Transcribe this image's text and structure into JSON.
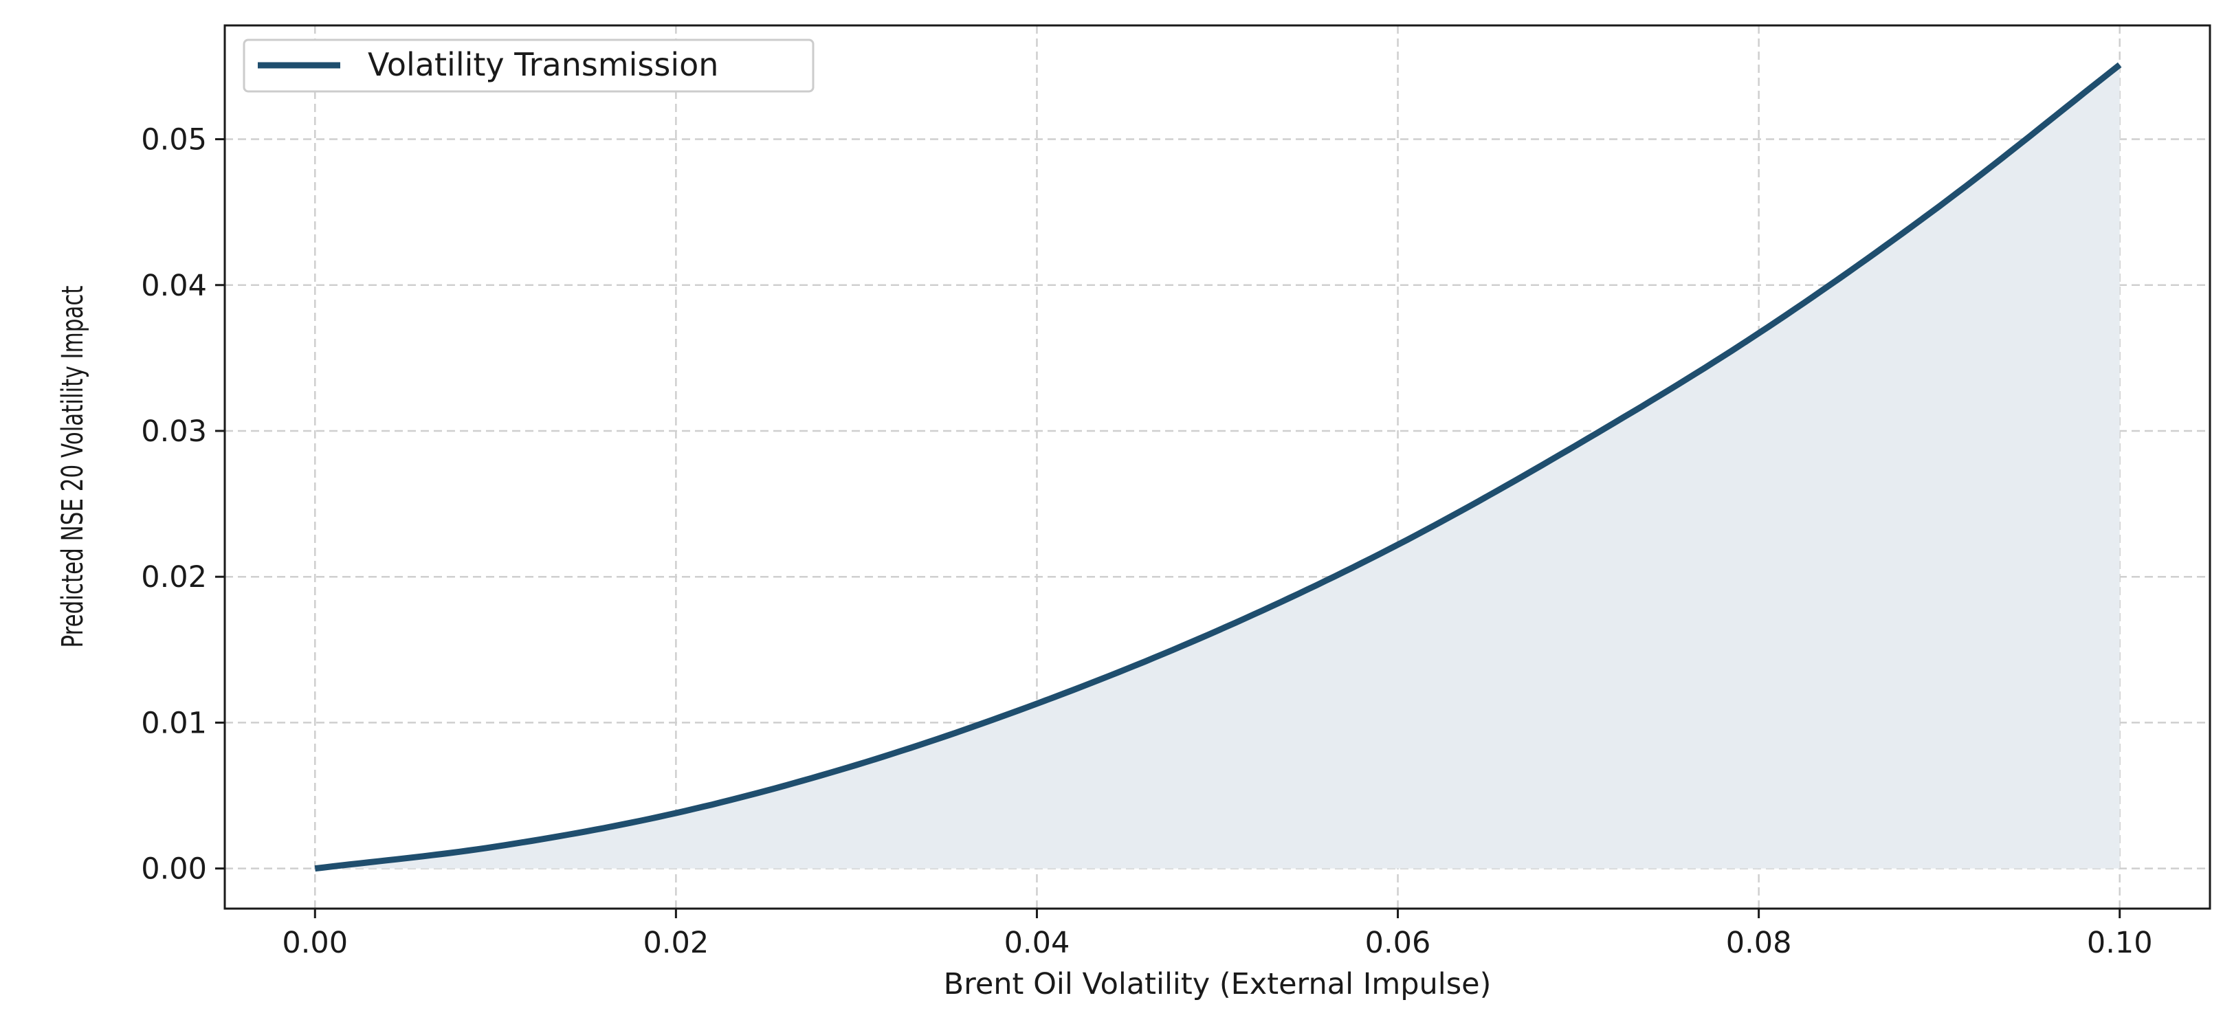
{
  "chart_data": {
    "type": "line",
    "title": "",
    "xlabel": "Brent Oil Volatility (External Impulse)",
    "ylabel": "Predicted NSE 20 Volatility Impact",
    "xlim": [
      -0.005,
      0.105
    ],
    "ylim": [
      -0.00275,
      0.0578
    ],
    "xticks": [
      0.0,
      0.02,
      0.04,
      0.06,
      0.08,
      0.1
    ],
    "xtick_labels": [
      "0.00",
      "0.02",
      "0.04",
      "0.06",
      "0.08",
      "0.10"
    ],
    "yticks": [
      0.0,
      0.01,
      0.02,
      0.03,
      0.04,
      0.05
    ],
    "ytick_labels": [
      "0.00",
      "0.01",
      "0.02",
      "0.03",
      "0.04",
      "0.05"
    ],
    "grid": true,
    "legend_position": "top-left",
    "fill_under": true,
    "series": [
      {
        "name": "Volatility Transmission",
        "color": "#1f4e6e",
        "fill_color": "#e7ecf1",
        "x": [
          0.0,
          0.01,
          0.02,
          0.03,
          0.04,
          0.05,
          0.06,
          0.07,
          0.08,
          0.09,
          0.1
        ],
        "y": [
          0.0,
          0.0015,
          0.0038,
          0.0071,
          0.0113,
          0.0163,
          0.0222,
          0.0291,
          0.0367,
          0.0454,
          0.0551
        ]
      }
    ]
  }
}
